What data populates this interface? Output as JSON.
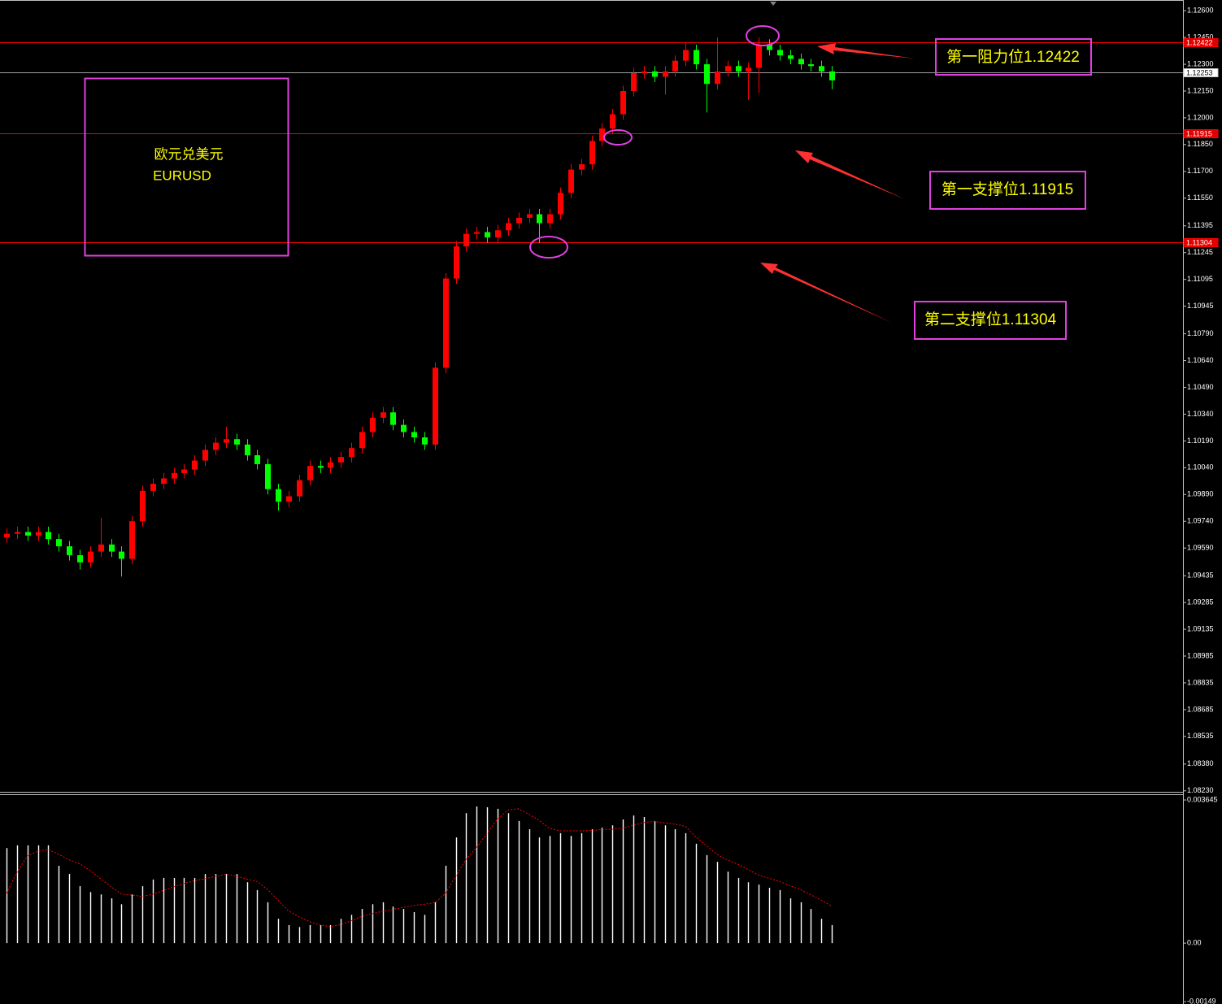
{
  "chart_data": [
    {
      "type": "candlestick",
      "annotations": [
        "欧元兑美元",
        "EURUSD",
        "第一阻力位1.12422",
        "第一支撑位1.11915",
        "第二支撑位1.11304"
      ],
      "up_color": "#ff0000",
      "down_color": "#00ff00",
      "open": [
        1.0965,
        1.0967,
        1.0968,
        1.0966,
        1.0968,
        1.0964,
        1.096,
        1.0955,
        1.0951,
        1.0957,
        1.0961,
        1.0957,
        1.0953,
        1.0974,
        1.0991,
        1.0995,
        1.0998,
        1.1001,
        1.1003,
        1.1008,
        1.1014,
        1.1018,
        1.102,
        1.1017,
        1.1011,
        1.1006,
        1.0992,
        1.0985,
        1.0988,
        1.0997,
        1.1005,
        1.1004,
        1.1007,
        1.101,
        1.1015,
        1.1024,
        1.1032,
        1.1035,
        1.1028,
        1.1024,
        1.1021,
        1.1017,
        1.106,
        1.111,
        1.1128,
        1.1135,
        1.1136,
        1.1133,
        1.1137,
        1.1141,
        1.1144,
        1.1146,
        1.1141,
        1.1146,
        1.1158,
        1.1171,
        1.1174,
        1.1187,
        1.1194,
        1.1202,
        1.1215,
        1.1225,
        1.1226,
        1.1223,
        1.1226,
        1.1232,
        1.1238,
        1.123,
        1.1219,
        1.1226,
        1.1229,
        1.1226,
        1.1228,
        1.1241,
        1.1238,
        1.1235,
        1.1233,
        1.123,
        1.1229,
        1.1226
      ],
      "high": [
        1.097,
        1.0971,
        1.0971,
        1.0971,
        1.0971,
        1.0967,
        1.0963,
        1.0958,
        1.096,
        1.0976,
        1.0964,
        1.096,
        1.0977,
        1.0994,
        1.0998,
        1.1001,
        1.1004,
        1.1006,
        1.1011,
        1.1017,
        1.1021,
        1.1027,
        1.1023,
        1.102,
        1.1014,
        1.1009,
        1.0995,
        1.0991,
        1.1,
        1.1008,
        1.1008,
        1.101,
        1.1013,
        1.1018,
        1.1027,
        1.1035,
        1.1038,
        1.1038,
        1.1031,
        1.1027,
        1.1024,
        1.1063,
        1.1113,
        1.1131,
        1.1138,
        1.1139,
        1.1139,
        1.114,
        1.1144,
        1.1147,
        1.1149,
        1.1149,
        1.1149,
        1.1161,
        1.1174,
        1.1177,
        1.119,
        1.1197,
        1.1205,
        1.1218,
        1.1228,
        1.1229,
        1.1229,
        1.1229,
        1.1235,
        1.1242,
        1.1241,
        1.1233,
        1.1245,
        1.1232,
        1.1232,
        1.1231,
        1.1245,
        1.1244,
        1.1241,
        1.1238,
        1.1236,
        1.1233,
        1.1232,
        1.1229
      ],
      "low": [
        1.0962,
        1.0964,
        1.0963,
        1.0963,
        1.0961,
        1.0957,
        1.0952,
        1.0947,
        1.0948,
        1.0954,
        1.0954,
        1.0943,
        1.095,
        1.0971,
        1.0988,
        1.0992,
        1.0995,
        1.0998,
        1.1,
        1.1005,
        1.1011,
        1.1015,
        1.1014,
        1.1008,
        1.1003,
        1.0989,
        1.098,
        1.0982,
        1.0985,
        1.0994,
        1.1001,
        1.1001,
        1.1004,
        1.1007,
        1.1012,
        1.1021,
        1.1029,
        1.1025,
        1.1021,
        1.1018,
        1.1014,
        1.1014,
        1.1057,
        1.1107,
        1.1125,
        1.1132,
        1.113,
        1.113,
        1.1134,
        1.1138,
        1.1141,
        1.113,
        1.1138,
        1.1143,
        1.1155,
        1.1168,
        1.1171,
        1.1184,
        1.1191,
        1.1199,
        1.1212,
        1.1222,
        1.122,
        1.1213,
        1.1223,
        1.1229,
        1.1227,
        1.1203,
        1.1216,
        1.1223,
        1.1223,
        1.121,
        1.1214,
        1.1235,
        1.1232,
        1.123,
        1.1227,
        1.1226,
        1.1223,
        1.1216
      ],
      "close": [
        1.0967,
        1.0968,
        1.0966,
        1.0968,
        1.0964,
        1.096,
        1.0955,
        1.0951,
        1.0957,
        1.0961,
        1.0957,
        1.0953,
        1.0974,
        1.0991,
        1.0995,
        1.0998,
        1.1001,
        1.1003,
        1.1008,
        1.1014,
        1.1018,
        1.102,
        1.1017,
        1.1011,
        1.1006,
        1.0992,
        1.0985,
        1.0988,
        1.0997,
        1.1005,
        1.1004,
        1.1007,
        1.101,
        1.1015,
        1.1024,
        1.1032,
        1.1035,
        1.1028,
        1.1024,
        1.1021,
        1.1017,
        1.106,
        1.111,
        1.1128,
        1.1135,
        1.1136,
        1.1133,
        1.1137,
        1.1141,
        1.1144,
        1.1146,
        1.1141,
        1.1146,
        1.1158,
        1.1171,
        1.1174,
        1.1187,
        1.1194,
        1.1202,
        1.1215,
        1.1225,
        1.1226,
        1.1223,
        1.1226,
        1.1232,
        1.1238,
        1.123,
        1.1219,
        1.1226,
        1.1229,
        1.1226,
        1.1228,
        1.1241,
        1.1238,
        1.1235,
        1.1233,
        1.123,
        1.1229,
        1.1226,
        1.1221
      ],
      "ylim": [
        1.0822,
        1.1266
      ],
      "yticks": [
        {
          "value": 1.126,
          "label": "1.12600"
        },
        {
          "value": 1.1245,
          "label": "1.12450"
        },
        {
          "value": 1.123,
          "label": "1.12300"
        },
        {
          "value": 1.1215,
          "label": "1.12150"
        },
        {
          "value": 1.12,
          "label": "1.12000"
        },
        {
          "value": 1.1185,
          "label": "1.11850"
        },
        {
          "value": 1.117,
          "label": "1.11700"
        },
        {
          "value": 1.1155,
          "label": "1.11550"
        },
        {
          "value": 1.11395,
          "label": "1.11395"
        },
        {
          "value": 1.11245,
          "label": "1.11245"
        },
        {
          "value": 1.11095,
          "label": "1.11095"
        },
        {
          "value": 1.10945,
          "label": "1.10945"
        },
        {
          "value": 1.1079,
          "label": "1.10790"
        },
        {
          "value": 1.1064,
          "label": "1.10640"
        },
        {
          "value": 1.1049,
          "label": "1.10490"
        },
        {
          "value": 1.1034,
          "label": "1.10340"
        },
        {
          "value": 1.1019,
          "label": "1.10190"
        },
        {
          "value": 1.1004,
          "label": "1.10040"
        },
        {
          "value": 1.0989,
          "label": "1.09890"
        },
        {
          "value": 1.0974,
          "label": "1.09740"
        },
        {
          "value": 1.0959,
          "label": "1.09590"
        },
        {
          "value": 1.09435,
          "label": "1.09435"
        },
        {
          "value": 1.09285,
          "label": "1.09285"
        },
        {
          "value": 1.09135,
          "label": "1.09135"
        },
        {
          "value": 1.08985,
          "label": "1.08985"
        },
        {
          "value": 1.08835,
          "label": "1.08835"
        },
        {
          "value": 1.08685,
          "label": "1.08685"
        },
        {
          "value": 1.08535,
          "label": "1.08535"
        },
        {
          "value": 1.0838,
          "label": "1.08380"
        },
        {
          "value": 1.0823,
          "label": "1.08230"
        }
      ],
      "levels": [
        {
          "value": 1.12422,
          "label": "1.12422",
          "color": "#ff0000"
        },
        {
          "value": 1.12253,
          "label": "1.12253",
          "color": "#a0a0a0"
        },
        {
          "value": 1.11915,
          "label": "1.11915",
          "color": "#ff0000"
        },
        {
          "value": 1.11304,
          "label": "1.11304",
          "color": "#ff0000"
        }
      ]
    },
    {
      "type": "macd",
      "histogram_color": "#ffffff",
      "signal_color": "#ff0000",
      "histogram": [
        0.00242,
        0.00249,
        0.00249,
        0.00249,
        0.00249,
        0.00197,
        0.00176,
        0.00145,
        0.0013,
        0.00124,
        0.00114,
        0.00099,
        0.00124,
        0.00145,
        0.00162,
        0.00166,
        0.00166,
        0.00166,
        0.00166,
        0.00176,
        0.00176,
        0.00176,
        0.00176,
        0.00155,
        0.00135,
        0.00104,
        0.00062,
        0.00046,
        0.00041,
        0.00046,
        0.00046,
        0.00046,
        0.00062,
        0.00072,
        0.00087,
        0.00099,
        0.00104,
        0.00093,
        0.00087,
        0.00079,
        0.00072,
        0.00104,
        0.00197,
        0.00269,
        0.00331,
        0.00348,
        0.00346,
        0.00342,
        0.00331,
        0.00311,
        0.0029,
        0.00269,
        0.00273,
        0.0028,
        0.00273,
        0.0028,
        0.0029,
        0.00294,
        0.003,
        0.00315,
        0.00325,
        0.00321,
        0.00311,
        0.003,
        0.0029,
        0.0028,
        0.00253,
        0.00224,
        0.00207,
        0.00182,
        0.00166,
        0.00155,
        0.00149,
        0.00141,
        0.00135,
        0.00114,
        0.00104,
        0.00087,
        0.00062,
        0.00046
      ],
      "signal": [
        0.00127,
        0.0018,
        0.00222,
        0.00234,
        0.00238,
        0.00226,
        0.00212,
        0.00202,
        0.00185,
        0.00164,
        0.00144,
        0.00125,
        0.00122,
        0.00119,
        0.00124,
        0.00134,
        0.00143,
        0.00152,
        0.00159,
        0.00164,
        0.0017,
        0.00175,
        0.00171,
        0.00163,
        0.00157,
        0.00136,
        0.00109,
        0.00082,
        0.00067,
        0.00055,
        0.00046,
        0.00042,
        0.00047,
        0.00057,
        0.00068,
        0.00075,
        0.00081,
        0.00086,
        0.00091,
        0.00096,
        0.00099,
        0.00103,
        0.00126,
        0.0017,
        0.00214,
        0.00244,
        0.0028,
        0.00316,
        0.00339,
        0.00342,
        0.00328,
        0.00312,
        0.00292,
        0.00286,
        0.00286,
        0.00286,
        0.00287,
        0.00289,
        0.0029,
        0.00293,
        0.003,
        0.00307,
        0.0031,
        0.00306,
        0.00303,
        0.00297,
        0.0027,
        0.00248,
        0.00226,
        0.00212,
        0.00201,
        0.00187,
        0.00173,
        0.00165,
        0.00157,
        0.00146,
        0.00136,
        0.00123,
        0.00109,
        0.00094
      ],
      "ylim": [
        -0.00155,
        0.00377
      ],
      "yticks": [
        0.003645,
        {
          "value": 0,
          "label": "0.00"
        },
        -0.00149
      ]
    }
  ]
}
